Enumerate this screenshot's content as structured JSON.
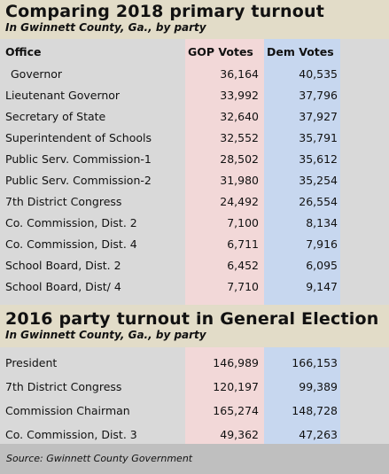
{
  "section1": {
    "title": "Comparing 2018 primary turnout",
    "subtitle": "In Gwinnett County, Ga., by party",
    "columns": [
      "Office",
      "GOP Votes",
      "Dem Votes"
    ],
    "rows": [
      {
        "office": "Governor",
        "gop": "36,164",
        "dem": "40,535"
      },
      {
        "office": "Lieutenant Governor",
        "gop": "33,992",
        "dem": "37,796"
      },
      {
        "office": "Secretary of State",
        "gop": "32,640",
        "dem": "37,927"
      },
      {
        "office": "Superintendent of Schools",
        "gop": "32,552",
        "dem": "35,791"
      },
      {
        "office": "Public Serv. Commission-1",
        "gop": "28,502",
        "dem": "35,612"
      },
      {
        "office": "Public Serv. Commission-2",
        "gop": "31,980",
        "dem": "35,254"
      },
      {
        "office": "7th District Congress",
        "gop": "24,492",
        "dem": "26,554"
      },
      {
        "office": "Co. Commission, Dist. 2",
        "gop": "7,100",
        "dem": "8,134"
      },
      {
        "office": "Co. Commission, Dist. 4",
        "gop": "6,711",
        "dem": "7,916"
      },
      {
        "office": "School Board, Dist. 2",
        "gop": "6,452",
        "dem": "6,095"
      },
      {
        "office": "School Board, Dist/ 4",
        "gop": "7,710",
        "dem": "9,147"
      }
    ]
  },
  "section2": {
    "title": "2016 party turnout in General Election",
    "subtitle": "In Gwinnett County, Ga., by party",
    "rows": [
      {
        "office": "President",
        "gop": "146,989",
        "dem": "166,153"
      },
      {
        "office": "7th District Congress",
        "gop": "120,197",
        "dem": "99,389"
      },
      {
        "office": "Commission Chairman",
        "gop": "165,274",
        "dem": "148,728"
      },
      {
        "office": "Co. Commission, Dist. 3",
        "gop": "49,362",
        "dem": "47,263"
      }
    ]
  },
  "footer": {
    "source": "Source: Gwinnett County Government"
  },
  "colors": {
    "header_bg": "#e2dcc8",
    "gop_column": "#f2d8d8",
    "dem_column": "#c7d7ef",
    "page_bg": "#d9d9d9",
    "footer_bg": "#bfbfbf"
  }
}
